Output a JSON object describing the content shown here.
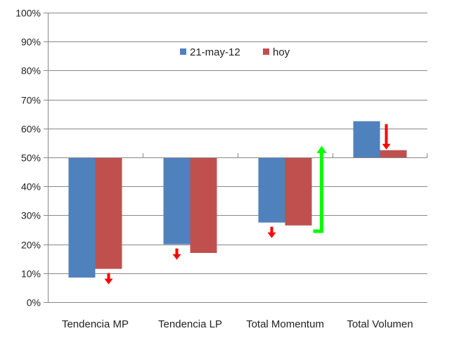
{
  "chart_data": {
    "type": "bar",
    "title": "",
    "xlabel": "",
    "ylabel": "",
    "ylim": [
      0,
      100
    ],
    "baseline": 50,
    "yticks": [
      "0%",
      "10%",
      "20%",
      "30%",
      "40%",
      "50%",
      "60%",
      "70%",
      "80%",
      "90%",
      "100%"
    ],
    "categories": [
      "Tendencia MP",
      "Tendencia LP",
      "Total Momentum",
      "Total Volumen"
    ],
    "series": [
      {
        "name": "21-may-12",
        "color": "#4F81BD",
        "values": [
          8.5,
          20,
          27.5,
          62.5
        ]
      },
      {
        "name": "hoy",
        "color": "#C0504D",
        "values": [
          11.5,
          17,
          26.5,
          52.5
        ]
      }
    ],
    "legend": {
      "position": "top-center"
    },
    "grid": true,
    "annotations": [
      {
        "type": "arrow-down",
        "color": "#FF0000",
        "category": "Tendencia MP"
      },
      {
        "type": "arrow-down",
        "color": "#FF0000",
        "category": "Tendencia LP"
      },
      {
        "type": "arrow-down",
        "color": "#FF0000",
        "category": "Total Momentum"
      },
      {
        "type": "bracket-arrow-up",
        "color": "#00FF00",
        "category": "Total Momentum"
      },
      {
        "type": "arrow-down",
        "color": "#FF0000",
        "category": "Total Volumen"
      }
    ]
  }
}
